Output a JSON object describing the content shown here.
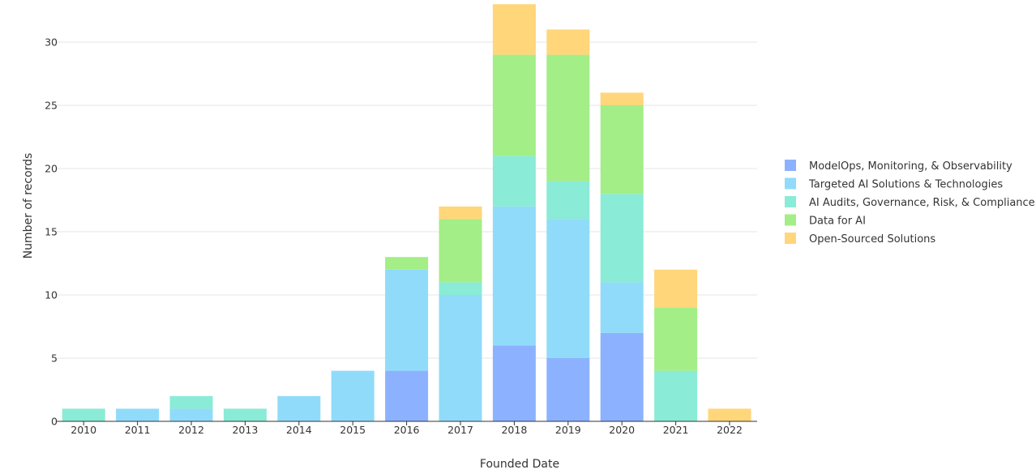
{
  "chart_data": {
    "type": "bar",
    "stacked": true,
    "xlabel": "Founded Date",
    "ylabel": "Number of records",
    "ylim": [
      0,
      33
    ],
    "yticks": [
      0,
      5,
      10,
      15,
      20,
      25,
      30
    ],
    "grid": true,
    "legend_position": "right",
    "categories": [
      "2010",
      "2011",
      "2012",
      "2013",
      "2014",
      "2015",
      "2016",
      "2017",
      "2018",
      "2019",
      "2020",
      "2021",
      "2022"
    ],
    "series": [
      {
        "name": "ModelOps, Monitoring, & Observability",
        "color": "#8cb2ff",
        "values": [
          0,
          0,
          0,
          0,
          0,
          0,
          4,
          0,
          6,
          5,
          7,
          0,
          0
        ]
      },
      {
        "name": "Targeted AI Solutions & Technologies",
        "color": "#90dbf9",
        "values": [
          0,
          1,
          1,
          0,
          2,
          4,
          8,
          10,
          11,
          11,
          4,
          0,
          0
        ]
      },
      {
        "name": "AI Audits, Governance, Risk, & Compliance",
        "color": "#8aebd6",
        "values": [
          1,
          0,
          1,
          1,
          0,
          0,
          0,
          1,
          4,
          3,
          7,
          4,
          0
        ]
      },
      {
        "name": "Data for AI",
        "color": "#a3ee87",
        "values": [
          0,
          0,
          0,
          0,
          0,
          0,
          1,
          5,
          8,
          10,
          7,
          5,
          0
        ]
      },
      {
        "name": "Open-Sourced Solutions",
        "color": "#ffd67a",
        "values": [
          0,
          0,
          0,
          0,
          0,
          0,
          0,
          1,
          4,
          2,
          1,
          3,
          1
        ]
      }
    ]
  }
}
